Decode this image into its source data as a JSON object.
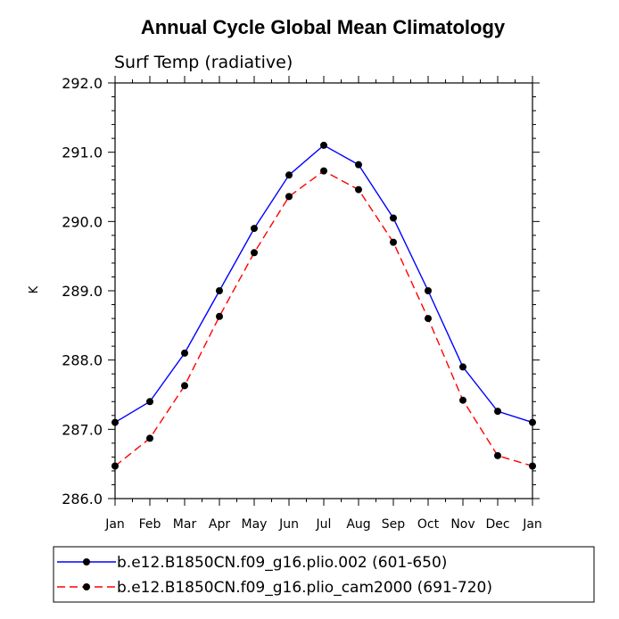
{
  "chart_data": {
    "type": "line",
    "title": "Annual Cycle Global Mean Climatology",
    "subtitle": "Surf Temp (radiative)",
    "xlabel": "",
    "ylabel": "K",
    "categories": [
      "Jan",
      "Feb",
      "Mar",
      "Apr",
      "May",
      "Jun",
      "Jul",
      "Aug",
      "Sep",
      "Oct",
      "Nov",
      "Dec",
      "Jan"
    ],
    "ylim": [
      286.0,
      292.0
    ],
    "yticks": [
      "286.0",
      "287.0",
      "288.0",
      "289.0",
      "290.0",
      "291.0",
      "292.0"
    ],
    "grid": false,
    "legend_position": "bottom",
    "series": [
      {
        "name": "b.e12.B1850CN.f09_g16.plio.002 (601-650)",
        "color": "#0000ff",
        "line_style": "solid",
        "values": [
          287.1,
          287.4,
          288.1,
          289.0,
          289.9,
          290.67,
          291.1,
          290.82,
          290.05,
          289.0,
          287.9,
          287.26,
          287.1
        ]
      },
      {
        "name": "b.e12.B1850CN.f09_g16.plio_cam2000 (691-720)",
        "color": "#ff0000",
        "line_style": "dashed",
        "values": [
          286.47,
          286.87,
          287.63,
          288.63,
          289.55,
          290.36,
          290.73,
          290.46,
          289.7,
          288.6,
          287.42,
          286.62,
          286.47
        ]
      }
    ]
  }
}
